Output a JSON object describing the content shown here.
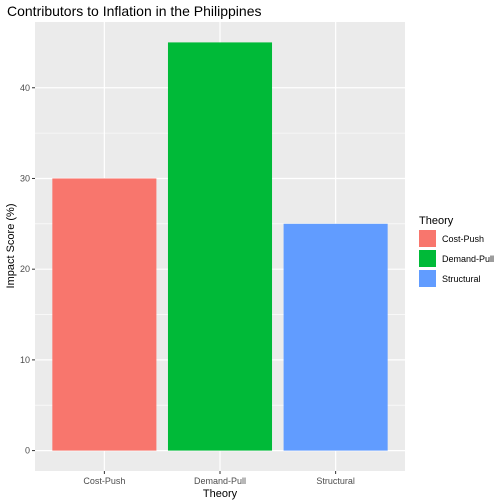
{
  "chart_data": {
    "type": "bar",
    "title": "Contributors to Inflation in the Philippines",
    "xlabel": "Theory",
    "ylabel": "Impact Score (%)",
    "categories": [
      "Cost-Push",
      "Demand-Pull",
      "Structural"
    ],
    "values": [
      30,
      45,
      25
    ],
    "colors": [
      "#F8766D",
      "#00BA38",
      "#619CFF"
    ],
    "ylim": [
      -2.25,
      47.25
    ],
    "yticks": [
      0,
      10,
      20,
      30,
      40
    ],
    "grid": true,
    "legend": {
      "title": "Theory",
      "placement": "right",
      "entries": [
        "Cost-Push",
        "Demand-Pull",
        "Structural"
      ]
    }
  }
}
